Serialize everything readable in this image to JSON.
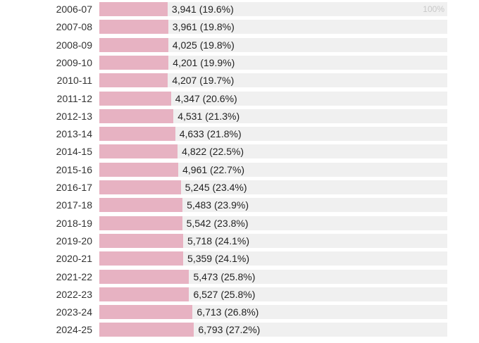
{
  "chart_data": {
    "type": "bar",
    "orientation": "horizontal",
    "max_label": "100%",
    "max_percent": 100,
    "categories": [
      "2006-07",
      "2007-08",
      "2008-09",
      "2009-10",
      "2010-11",
      "2011-12",
      "2012-13",
      "2013-14",
      "2014-15",
      "2015-16",
      "2016-17",
      "2017-18",
      "2018-19",
      "2019-20",
      "2020-21",
      "2021-22",
      "2022-23",
      "2023-24",
      "2024-25"
    ],
    "values": [
      3941,
      3961,
      4025,
      4201,
      4207,
      4347,
      4531,
      4633,
      4822,
      4961,
      5245,
      5483,
      5542,
      5718,
      5359,
      5473,
      6527,
      6713,
      6793
    ],
    "percents": [
      19.6,
      19.8,
      19.8,
      19.9,
      19.7,
      20.6,
      21.3,
      21.8,
      22.5,
      22.7,
      23.4,
      23.9,
      23.8,
      24.1,
      24.1,
      25.8,
      25.8,
      26.8,
      27.2
    ],
    "labels": [
      "3,941 (19.6%)",
      "3,961 (19.8%)",
      "4,025 (19.8%)",
      "4,201 (19.9%)",
      "4,207 (19.7%)",
      "4,347 (20.6%)",
      "4,531 (21.3%)",
      "4,633 (21.8%)",
      "4,822 (22.5%)",
      "4,961 (22.7%)",
      "5,245 (23.4%)",
      "5,483 (23.9%)",
      "5,542 (23.8%)",
      "5,718 (24.1%)",
      "5,359 (24.1%)",
      "5,473 (25.8%)",
      "6,527 (25.8%)",
      "6,713 (26.8%)",
      "6,793 (27.2%)"
    ],
    "bar_color": "#e7b2c2",
    "track_color": "#f0f0f0"
  }
}
